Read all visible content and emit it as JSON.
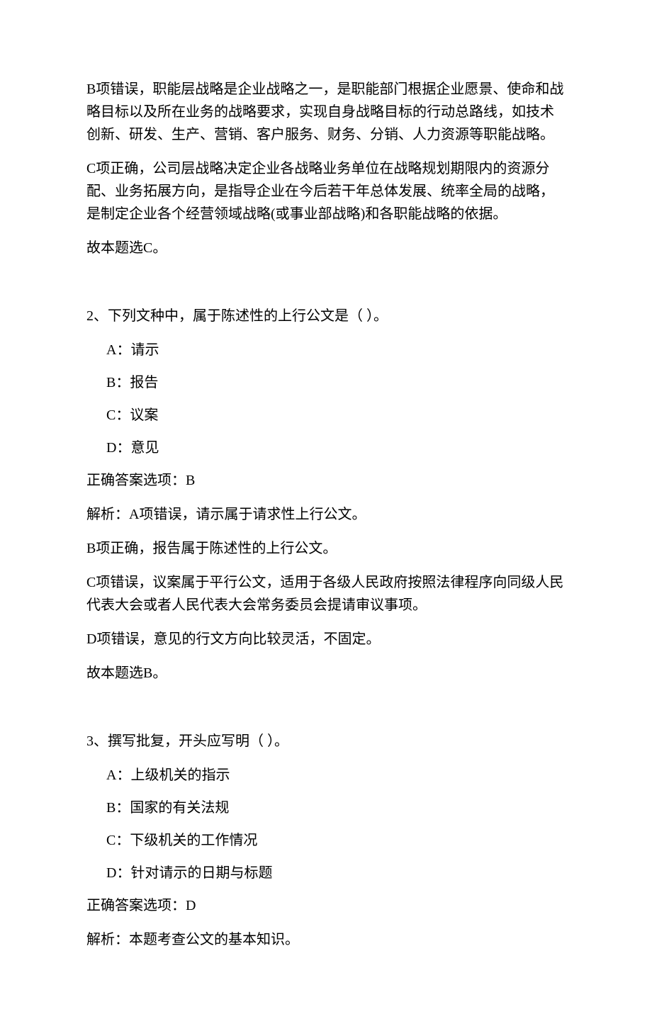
{
  "q1_explain": {
    "b_wrong": "B项错误，职能层战略是企业战略之一，是职能部门根据企业愿景、使命和战略目标以及所在业务的战略要求，实现自身战略目标的行动总路线，如技术创新、研发、生产、营销、客户服务、财务、分销、人力资源等职能战略。",
    "c_correct": "C项正确，公司层战略决定企业各战略业务单位在战略规划期限内的资源分配、业务拓展方向，是指导企业在今后若干年总体发展、统率全局的战略，是制定企业各个经营领域战略(或事业部战略)和各职能战略的依据。",
    "conclusion": "故本题选C。"
  },
  "q2": {
    "stem": "2、下列文种中，属于陈述性的上行公文是（ ）。",
    "options": {
      "a": "A：请示",
      "b": "B：报告",
      "c": "C：议案",
      "d": "D：意见"
    },
    "answer": "正确答案选项：B",
    "explain": {
      "a": "解析：A项错误，请示属于请求性上行公文。",
      "b": "B项正确，报告属于陈述性的上行公文。",
      "c": "C项错误，议案属于平行公文，适用于各级人民政府按照法律程序向同级人民代表大会或者人民代表大会常务委员会提请审议事项。",
      "d": "D项错误，意见的行文方向比较灵活，不固定。",
      "conclusion": "故本题选B。"
    }
  },
  "q3": {
    "stem": "3、撰写批复，开头应写明（ ）。",
    "options": {
      "a": "A：上级机关的指示",
      "b": "B：国家的有关法规",
      "c": "C：下级机关的工作情况",
      "d": "D：针对请示的日期与标题"
    },
    "answer": "正确答案选项：D",
    "explain": "解析：本题考查公文的基本知识。"
  }
}
